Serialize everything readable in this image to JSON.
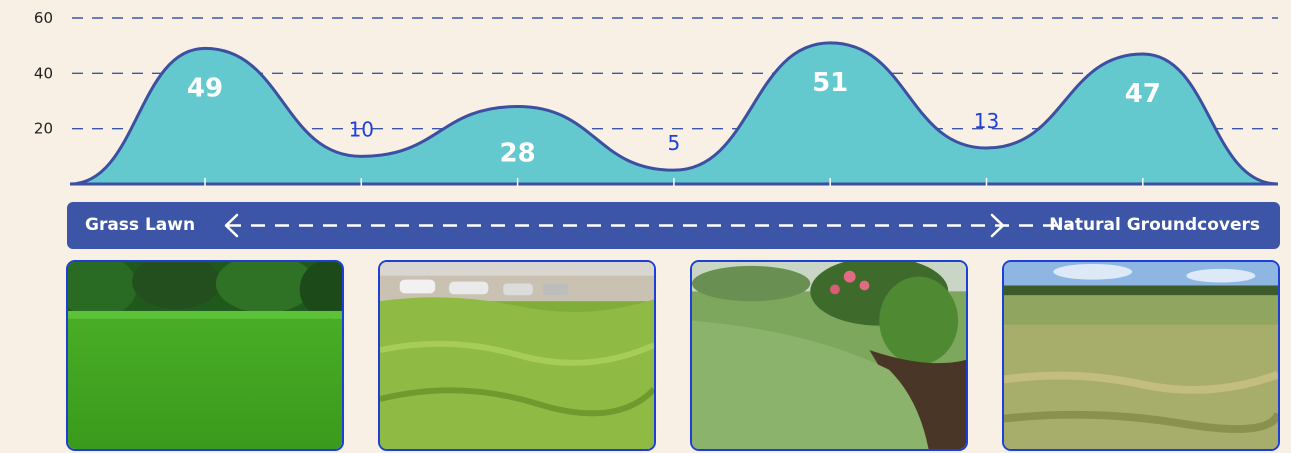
{
  "chart_data": {
    "type": "area",
    "categories": [
      "",
      "",
      "",
      "",
      "",
      "",
      ""
    ],
    "values": [
      49,
      10,
      28,
      5,
      51,
      13,
      47
    ],
    "value_labels": [
      "49",
      "10",
      "28",
      "5",
      "51",
      "13",
      "47"
    ],
    "yticks": [
      "60",
      "40",
      "20"
    ],
    "ylim": [
      0,
      60
    ],
    "grid": true,
    "colors": {
      "fill": "#63c9cf",
      "stroke": "#3d4fa0",
      "label_inside": "#ffffff",
      "label_outside": "#1d3fe0",
      "grid": "#3d55a6"
    }
  },
  "banner": {
    "left_label": "Grass Lawn",
    "right_label": "Natural Groundcovers",
    "icon": "double-arrow-icon",
    "color": "#3d55a6"
  },
  "photos": [
    {
      "subject": "mowed grass lawn",
      "icon": "photo-lawn"
    },
    {
      "subject": "flowing meadow grass",
      "icon": "photo-meadow-grass"
    },
    {
      "subject": "groundcover garden",
      "icon": "photo-groundcover"
    },
    {
      "subject": "natural field",
      "icon": "photo-field"
    }
  ]
}
